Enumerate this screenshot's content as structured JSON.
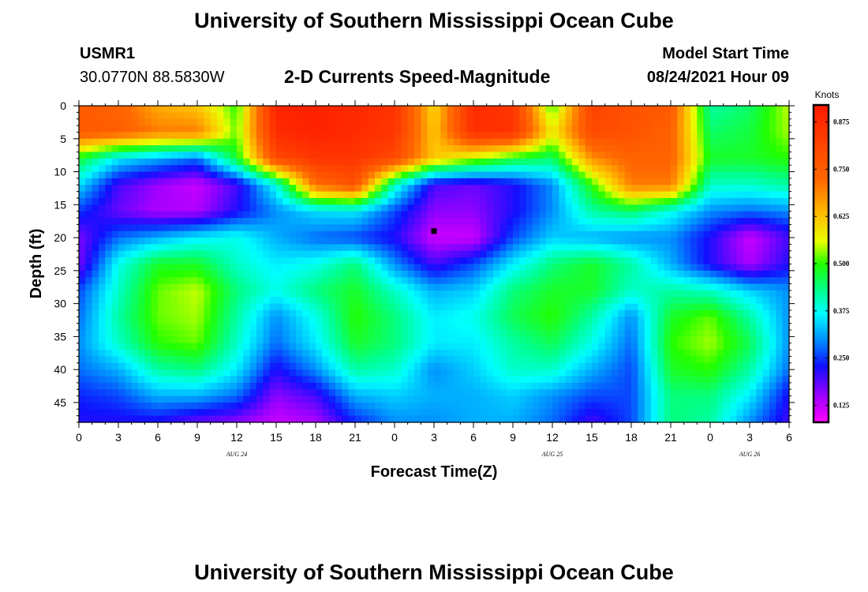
{
  "header": {
    "title": "University of Southern Mississippi Ocean Cube",
    "station": "USMR1",
    "coords": "30.0770N  88.5830W",
    "subtitle": "2-D Currents Speed-Magnitude",
    "model_label": "Model Start Time",
    "model_time": "08/24/2021 Hour 09"
  },
  "footer": {
    "title": "University of Southern Mississippi Ocean Cube"
  },
  "colors": {
    "red": "#ff1a00",
    "orange": "#ff6a00",
    "yellow": "#e8ff00",
    "green": "#22ff00",
    "cyan": "#00ffff",
    "blue": "#1010ff",
    "magenta": "#ff00ff"
  },
  "chart_data": {
    "type": "heatmap",
    "title": "2-D Currents Speed-Magnitude",
    "xlabel": "Forecast Time(Z)",
    "ylabel": "Depth (ft)",
    "x_ticks": [
      "0",
      "3",
      "6",
      "9",
      "12",
      "15",
      "18",
      "21",
      "0",
      "3",
      "6",
      "9",
      "12",
      "15",
      "18",
      "21",
      "0",
      "3",
      "6"
    ],
    "x_tick_hours": [
      0,
      3,
      6,
      9,
      12,
      15,
      18,
      21,
      24,
      27,
      30,
      33,
      36,
      39,
      42,
      45,
      48,
      51,
      54
    ],
    "date_labels": [
      {
        "label": "AUG 24",
        "hour": 12
      },
      {
        "label": "AUG 25",
        "hour": 36
      },
      {
        "label": "AUG 26",
        "hour": 51
      }
    ],
    "y_ticks": [
      "0",
      "5",
      "10",
      "15",
      "20",
      "25",
      "30",
      "35",
      "40",
      "45"
    ],
    "y_tick_values": [
      0,
      5,
      10,
      15,
      20,
      25,
      30,
      35,
      40,
      45
    ],
    "xlim": [
      0,
      54
    ],
    "ylim": [
      0,
      48
    ],
    "y_inverted": true,
    "colorbar": {
      "unit": "Knots",
      "ticks": [
        "0.875",
        "0.750",
        "0.625",
        "0.500",
        "0.375",
        "0.250",
        "0.125"
      ],
      "tick_values": [
        0.875,
        0.75,
        0.625,
        0.5,
        0.375,
        0.25,
        0.125
      ],
      "range": [
        0.08,
        0.92
      ]
    },
    "marker": {
      "hour": 27,
      "depth": 19
    },
    "grid_hours": [
      0,
      3,
      6,
      9,
      12,
      15,
      18,
      21,
      24,
      27,
      30,
      33,
      36,
      39,
      42,
      45,
      48,
      51,
      54
    ],
    "grid_depths": [
      0,
      4,
      8,
      12,
      16,
      20,
      24,
      28,
      32,
      36,
      40,
      44,
      48
    ],
    "values": [
      [
        0.76,
        0.74,
        0.65,
        0.62,
        0.5,
        0.9,
        0.9,
        0.88,
        0.86,
        0.6,
        0.88,
        0.85,
        0.5,
        0.82,
        0.78,
        0.76,
        0.42,
        0.45,
        0.55
      ],
      [
        0.76,
        0.75,
        0.7,
        0.7,
        0.52,
        0.88,
        0.9,
        0.88,
        0.85,
        0.62,
        0.87,
        0.86,
        0.58,
        0.8,
        0.78,
        0.74,
        0.45,
        0.47,
        0.54
      ],
      [
        0.48,
        0.36,
        0.32,
        0.28,
        0.48,
        0.8,
        0.85,
        0.85,
        0.8,
        0.62,
        0.55,
        0.48,
        0.45,
        0.68,
        0.74,
        0.74,
        0.48,
        0.48,
        0.5
      ],
      [
        0.35,
        0.2,
        0.15,
        0.12,
        0.2,
        0.38,
        0.72,
        0.78,
        0.4,
        0.2,
        0.18,
        0.22,
        0.3,
        0.5,
        0.7,
        0.7,
        0.4,
        0.4,
        0.42
      ],
      [
        0.25,
        0.18,
        0.14,
        0.14,
        0.22,
        0.3,
        0.35,
        0.36,
        0.26,
        0.16,
        0.16,
        0.22,
        0.3,
        0.42,
        0.45,
        0.38,
        0.3,
        0.28,
        0.3
      ],
      [
        0.17,
        0.28,
        0.32,
        0.36,
        0.38,
        0.32,
        0.28,
        0.26,
        0.22,
        0.12,
        0.12,
        0.26,
        0.34,
        0.32,
        0.3,
        0.3,
        0.22,
        0.12,
        0.2
      ],
      [
        0.17,
        0.38,
        0.48,
        0.48,
        0.4,
        0.36,
        0.38,
        0.44,
        0.3,
        0.2,
        0.26,
        0.36,
        0.44,
        0.48,
        0.42,
        0.32,
        0.22,
        0.14,
        0.22
      ],
      [
        0.26,
        0.4,
        0.52,
        0.55,
        0.44,
        0.38,
        0.44,
        0.48,
        0.4,
        0.32,
        0.34,
        0.44,
        0.48,
        0.48,
        0.4,
        0.42,
        0.4,
        0.34,
        0.3
      ],
      [
        0.28,
        0.42,
        0.52,
        0.54,
        0.42,
        0.3,
        0.38,
        0.5,
        0.44,
        0.36,
        0.38,
        0.46,
        0.5,
        0.42,
        0.3,
        0.48,
        0.52,
        0.42,
        0.3
      ],
      [
        0.3,
        0.4,
        0.5,
        0.52,
        0.4,
        0.28,
        0.36,
        0.48,
        0.44,
        0.36,
        0.36,
        0.42,
        0.46,
        0.38,
        0.28,
        0.5,
        0.54,
        0.46,
        0.3
      ],
      [
        0.28,
        0.32,
        0.42,
        0.44,
        0.36,
        0.22,
        0.3,
        0.42,
        0.4,
        0.3,
        0.34,
        0.4,
        0.4,
        0.32,
        0.26,
        0.48,
        0.5,
        0.42,
        0.28
      ],
      [
        0.24,
        0.26,
        0.32,
        0.32,
        0.28,
        0.16,
        0.2,
        0.32,
        0.34,
        0.32,
        0.32,
        0.34,
        0.3,
        0.26,
        0.26,
        0.44,
        0.44,
        0.36,
        0.22
      ],
      [
        0.22,
        0.22,
        0.22,
        0.18,
        0.16,
        0.12,
        0.14,
        0.24,
        0.3,
        0.3,
        0.32,
        0.32,
        0.28,
        0.2,
        0.26,
        0.44,
        0.42,
        0.3,
        0.2
      ]
    ]
  }
}
